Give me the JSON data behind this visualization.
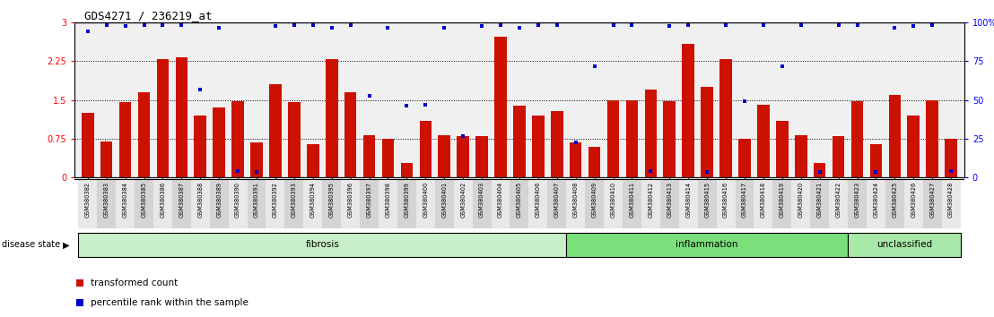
{
  "title": "GDS4271 / 236219_at",
  "samples": [
    "GSM380382",
    "GSM380383",
    "GSM380384",
    "GSM380385",
    "GSM380386",
    "GSM380387",
    "GSM380388",
    "GSM380389",
    "GSM380390",
    "GSM380391",
    "GSM380392",
    "GSM380393",
    "GSM380394",
    "GSM380395",
    "GSM380396",
    "GSM380397",
    "GSM380398",
    "GSM380399",
    "GSM380400",
    "GSM380401",
    "GSM380402",
    "GSM380403",
    "GSM380404",
    "GSM380405",
    "GSM380406",
    "GSM380407",
    "GSM380408",
    "GSM380409",
    "GSM380410",
    "GSM380411",
    "GSM380412",
    "GSM380413",
    "GSM380414",
    "GSM380415",
    "GSM380416",
    "GSM380417",
    "GSM380418",
    "GSM380419",
    "GSM380420",
    "GSM380421",
    "GSM380422",
    "GSM380423",
    "GSM380424",
    "GSM380425",
    "GSM380426",
    "GSM380427",
    "GSM380428"
  ],
  "red_bars": [
    1.25,
    0.7,
    1.45,
    1.65,
    2.28,
    2.32,
    1.2,
    1.35,
    1.48,
    0.68,
    1.8,
    1.45,
    0.65,
    2.28,
    1.65,
    0.82,
    0.75,
    0.28,
    1.1,
    0.82,
    0.8,
    0.8,
    2.72,
    1.38,
    1.2,
    1.28,
    0.68,
    0.6,
    1.5,
    1.5,
    1.7,
    1.48,
    2.58,
    1.75,
    2.28,
    0.75,
    1.4,
    1.1,
    0.82,
    0.28,
    0.8,
    1.48,
    0.65,
    1.6,
    1.2,
    1.5,
    0.75
  ],
  "blue_dots": [
    2.82,
    2.95,
    2.92,
    2.95,
    2.95,
    2.95,
    1.7,
    2.9,
    0.12,
    0.1,
    2.92,
    2.95,
    2.95,
    2.9,
    2.95,
    1.58,
    2.9,
    1.38,
    1.4,
    2.9,
    0.8,
    2.92,
    2.95,
    2.9,
    2.95,
    2.95,
    0.68,
    2.15,
    2.95,
    2.95,
    0.12,
    2.92,
    2.95,
    0.1,
    2.95,
    1.48,
    2.95,
    2.15,
    2.95,
    0.1,
    2.95,
    2.95,
    0.1,
    2.9,
    2.92,
    2.95,
    0.12
  ],
  "groups": [
    {
      "label": "fibrosis",
      "start": 0,
      "end": 26,
      "color": "#c8f0c8"
    },
    {
      "label": "inflammation",
      "start": 26,
      "end": 41,
      "color": "#7be07b"
    },
    {
      "label": "unclassified",
      "start": 41,
      "end": 47,
      "color": "#a8e8a8"
    }
  ],
  "ylim_left": [
    0,
    3.0
  ],
  "yticks_left": [
    0,
    0.75,
    1.5,
    2.25,
    3.0
  ],
  "ytick_labels_left": [
    "0",
    "0.75",
    "1.5",
    "2.25",
    "3"
  ],
  "ytick_labels_right": [
    "0",
    "25",
    "50",
    "75",
    "100%"
  ],
  "hlines": [
    0.75,
    1.5,
    2.25
  ],
  "bar_color": "#cc1100",
  "dot_color": "#0000cc",
  "bg_color": "#ffffff",
  "plot_bg": "#f0f0f0"
}
